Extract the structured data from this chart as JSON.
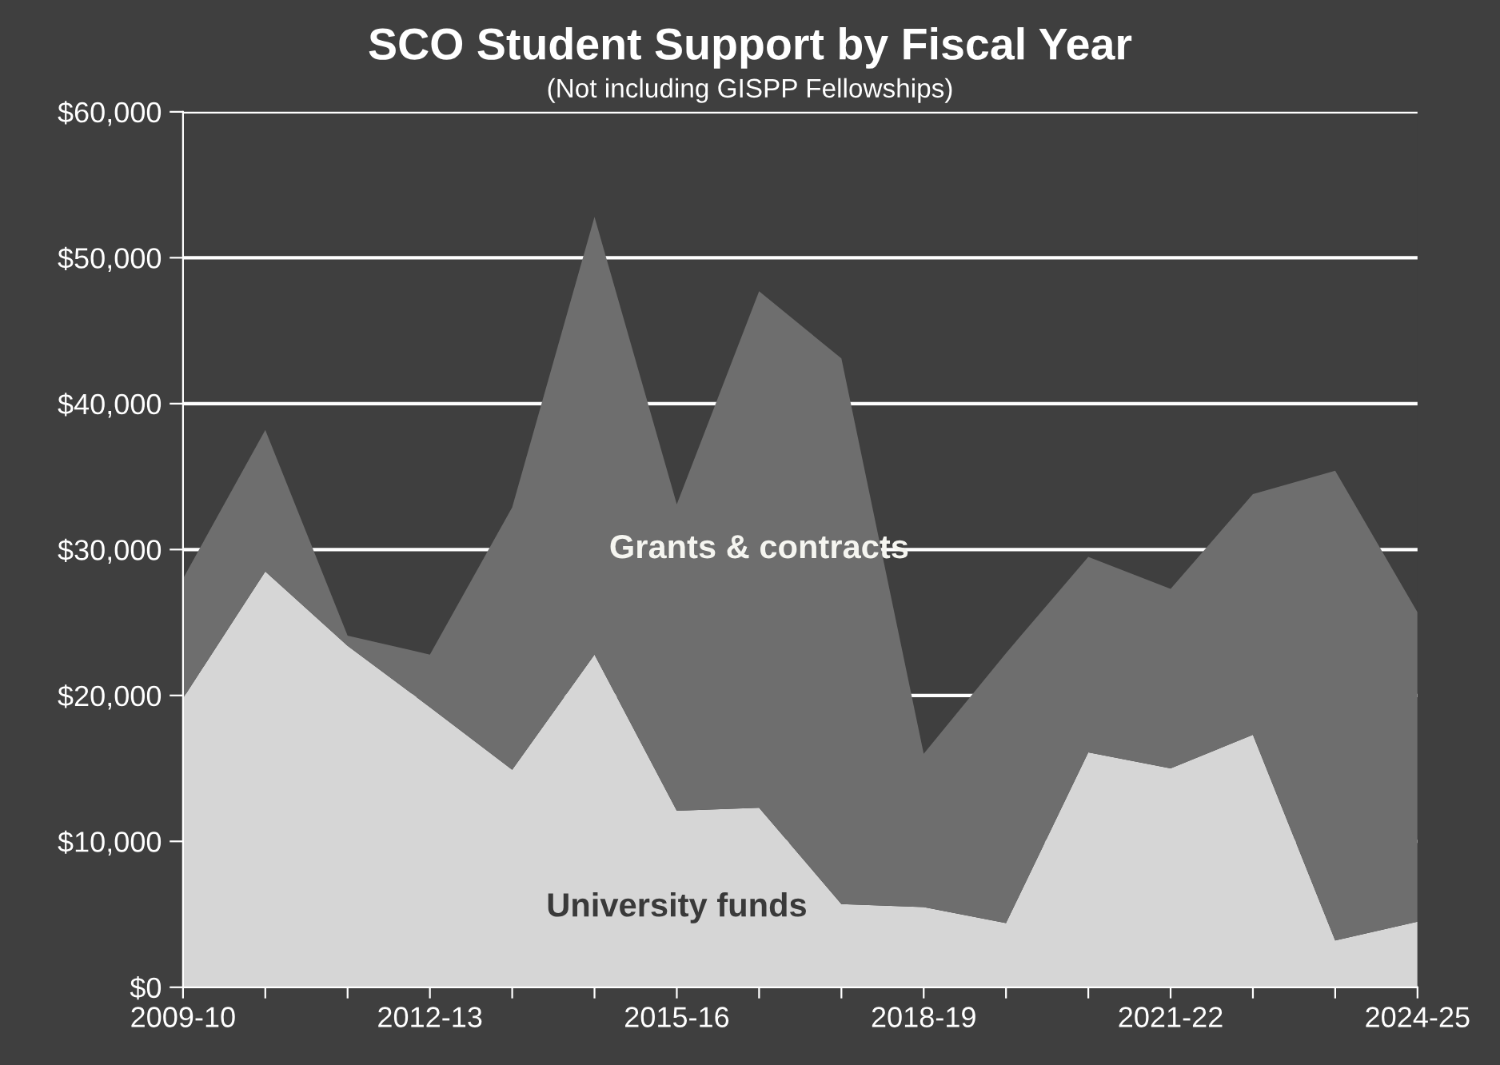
{
  "chart_data": {
    "type": "area",
    "stacked": true,
    "title": "SCO Student Support by Fiscal Year",
    "subtitle": "(Not including GISPP Fellowships)",
    "categories": [
      "2009-10",
      null,
      null,
      "2012-13",
      null,
      null,
      "2015-16",
      null,
      null,
      "2018-19",
      null,
      null,
      "2021-22",
      null,
      null,
      "2024-25"
    ],
    "series": [
      {
        "name": "University funds",
        "color": "#d6d6d6",
        "values": [
          19800,
          28500,
          23400,
          19200,
          14900,
          22800,
          12100,
          12300,
          5700,
          5500,
          4400,
          16100,
          15000,
          17300,
          3200,
          4500
        ]
      },
      {
        "name": "Grants & contracts",
        "color": "#6e6e6e",
        "values": [
          8200,
          9700,
          700,
          3600,
          18000,
          30000,
          21000,
          35400,
          37400,
          10500,
          18500,
          13400,
          12300,
          16500,
          32200,
          21200
        ]
      }
    ],
    "ylim": [
      0,
      60000
    ],
    "yticks": [
      {
        "value": 0,
        "label": "$0"
      },
      {
        "value": 10000,
        "label": "$10,000"
      },
      {
        "value": 20000,
        "label": "$20,000"
      },
      {
        "value": 30000,
        "label": "$30,000"
      },
      {
        "value": 40000,
        "label": "$40,000"
      },
      {
        "value": 50000,
        "label": "$50,000"
      },
      {
        "value": 60000,
        "label": "$60,000"
      }
    ],
    "grid": "y",
    "legend": false
  }
}
